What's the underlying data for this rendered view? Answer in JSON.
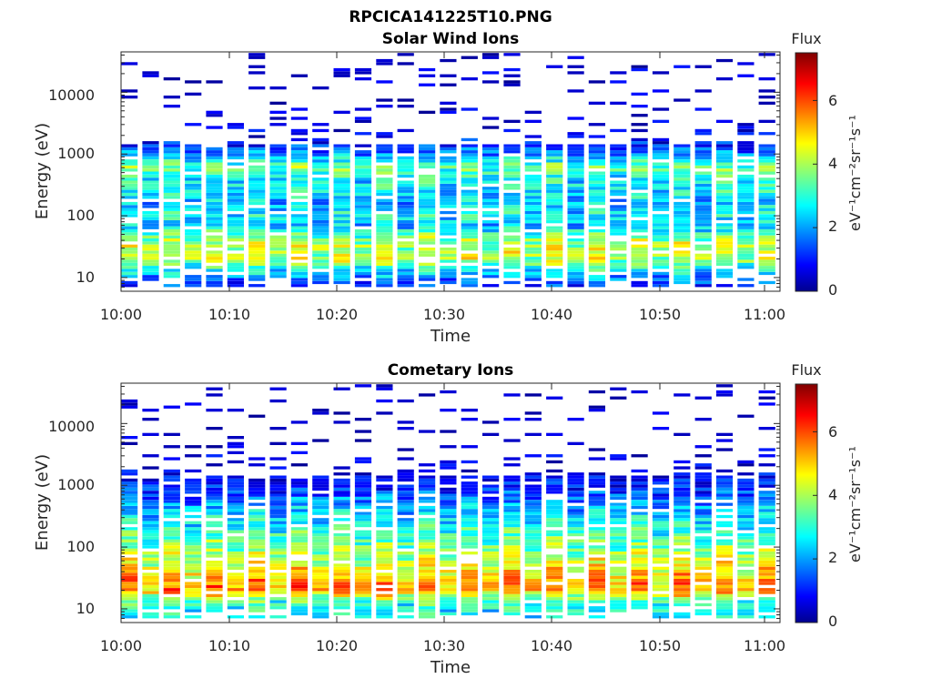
{
  "figure": {
    "title": "RPCICA141225T10.PNG"
  },
  "colorbar": {
    "label": "Flux",
    "unit_label": "eV⁻¹cm⁻²sr⁻¹s⁻¹",
    "range": [
      0,
      7.5
    ],
    "ticks": [
      "0",
      "2",
      "4",
      "6"
    ],
    "colormap": "jet"
  },
  "chart_data": [
    {
      "type": "heatmap",
      "title": "Solar Wind Ions",
      "xlabel": "Time",
      "ylabel": "Energy (eV)",
      "y_scale": "log",
      "ylim": [
        6,
        45000
      ],
      "xlim": [
        "10:00",
        "11:02"
      ],
      "x_tick_labels": [
        "10:00",
        "10:10",
        "10:20",
        "10:30",
        "10:40",
        "10:50",
        "11:00"
      ],
      "y_tick_labels": [
        "10",
        "100",
        "1000",
        "10000"
      ],
      "time_bins": 31,
      "energy_profile": {
        "energy_eV": [
          8,
          13,
          20,
          32,
          45,
          70,
          100,
          160,
          250,
          400,
          600,
          900,
          1400,
          2500,
          5000,
          10000,
          20000,
          35000
        ],
        "typical_flux": [
          1.5,
          3.0,
          4.5,
          4.5,
          4.0,
          2.5,
          3.0,
          2.5,
          3.0,
          3.0,
          4.0,
          2.5,
          1.2,
          0.6,
          0.4,
          0.3,
          0.3,
          0.3
        ]
      }
    },
    {
      "type": "heatmap",
      "title": "Cometary Ions",
      "xlabel": "Time",
      "ylabel": "Energy (eV)",
      "y_scale": "log",
      "ylim": [
        6,
        45000
      ],
      "xlim": [
        "10:00",
        "11:02"
      ],
      "x_tick_labels": [
        "10:00",
        "10:10",
        "10:20",
        "10:30",
        "10:40",
        "10:50",
        "11:00"
      ],
      "y_tick_labels": [
        "10",
        "100",
        "1000",
        "10000"
      ],
      "time_bins": 31,
      "energy_profile": {
        "energy_eV": [
          8,
          13,
          20,
          32,
          45,
          70,
          100,
          160,
          250,
          400,
          600,
          900,
          1400,
          2500,
          5000,
          10000,
          20000,
          35000
        ],
        "typical_flux": [
          3.0,
          3.5,
          6.0,
          5.5,
          5.0,
          4.5,
          4.0,
          3.5,
          3.0,
          2.5,
          2.0,
          1.2,
          0.8,
          0.5,
          0.3,
          0.2,
          0.2,
          0.2
        ]
      }
    }
  ]
}
